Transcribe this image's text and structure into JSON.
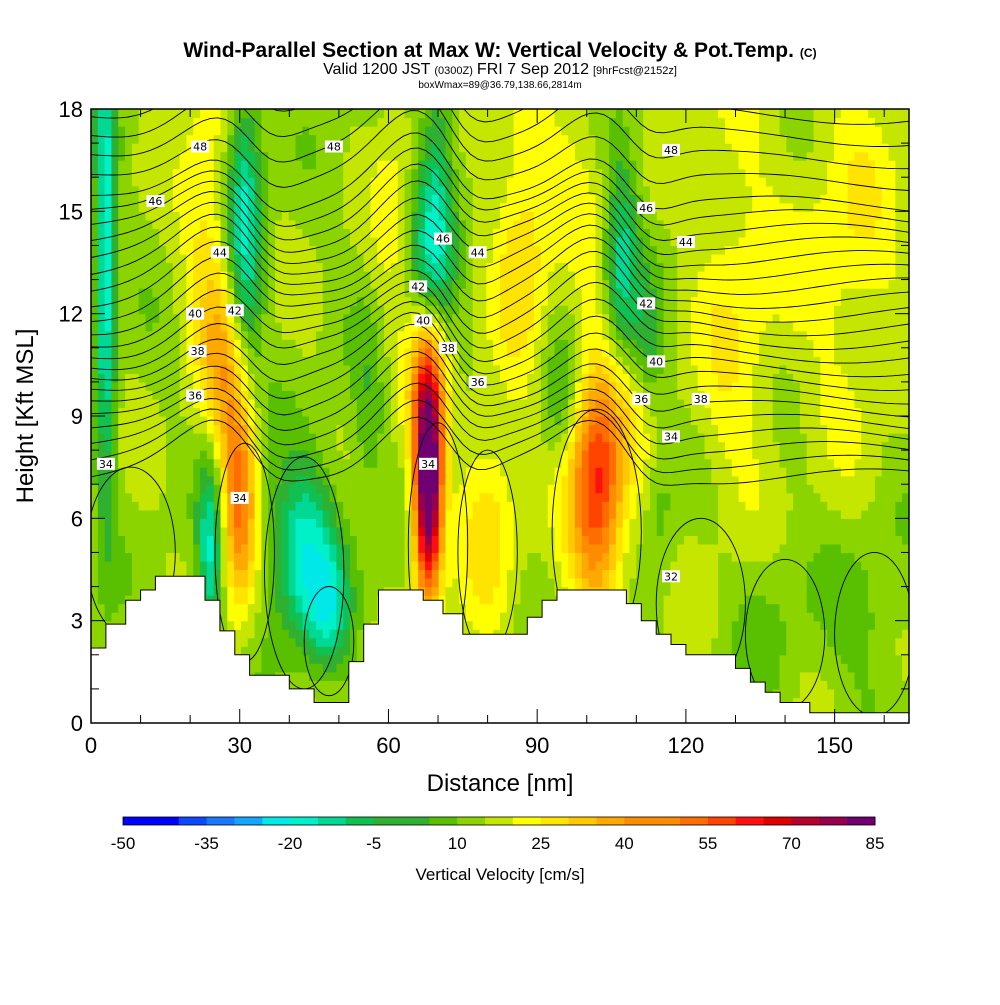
{
  "title": {
    "main": "Wind-Parallel Section at Max W: Vertical Velocity & Pot.Temp.",
    "copyright": "(C)",
    "valid_prefix": "Valid 1200 JST",
    "valid_zulu": "(0300Z)",
    "valid_date": "FRI 7 Sep 2012",
    "forecast": "[9hrFcst@2152z]",
    "boxmax": "boxWmax=89@36.79,138.66,2814m"
  },
  "chart_data": {
    "type": "heatmap",
    "xlabel": "Distance [nm]",
    "ylabel": "Height [Kft MSL]",
    "xlim": [
      0,
      165
    ],
    "ylim": [
      0,
      18
    ],
    "x_ticks": [
      "0",
      "30",
      "60",
      "90",
      "120",
      "150"
    ],
    "y_ticks": [
      "0",
      "3",
      "6",
      "9",
      "12",
      "15",
      "18"
    ],
    "colorbar": {
      "title": "Vertical Velocity [cm/s]",
      "min": -50,
      "max": 85,
      "step": 5,
      "tick_labels": [
        "-50",
        "-35",
        "-20",
        "-5",
        "10",
        "25",
        "40",
        "55",
        "70",
        "85"
      ]
    },
    "terrain": [
      [
        0,
        2.2
      ],
      [
        3,
        2.2
      ],
      [
        3,
        2.9
      ],
      [
        7,
        2.9
      ],
      [
        7,
        3.6
      ],
      [
        10,
        3.6
      ],
      [
        10,
        3.9
      ],
      [
        13,
        3.9
      ],
      [
        13,
        4.3
      ],
      [
        23,
        4.3
      ],
      [
        23,
        3.6
      ],
      [
        26,
        3.6
      ],
      [
        26,
        2.7
      ],
      [
        29,
        2.7
      ],
      [
        29,
        2.0
      ],
      [
        32,
        2.0
      ],
      [
        32,
        1.4
      ],
      [
        40,
        1.4
      ],
      [
        40,
        1.0
      ],
      [
        45,
        1.0
      ],
      [
        45,
        0.6
      ],
      [
        52,
        0.6
      ],
      [
        52,
        1.8
      ],
      [
        55,
        1.8
      ],
      [
        55,
        2.9
      ],
      [
        58,
        2.9
      ],
      [
        58,
        3.9
      ],
      [
        67,
        3.9
      ],
      [
        67,
        3.6
      ],
      [
        71,
        3.6
      ],
      [
        71,
        3.2
      ],
      [
        75,
        3.2
      ],
      [
        75,
        2.6
      ],
      [
        88,
        2.6
      ],
      [
        88,
        3.1
      ],
      [
        91,
        3.1
      ],
      [
        91,
        3.6
      ],
      [
        94,
        3.6
      ],
      [
        94,
        3.9
      ],
      [
        108,
        3.9
      ],
      [
        108,
        3.5
      ],
      [
        111,
        3.5
      ],
      [
        111,
        3.0
      ],
      [
        114,
        3.0
      ],
      [
        114,
        2.6
      ],
      [
        117,
        2.6
      ],
      [
        117,
        2.3
      ],
      [
        120,
        2.3
      ],
      [
        120,
        2.0
      ],
      [
        130,
        2.0
      ],
      [
        130,
        1.6
      ],
      [
        133,
        1.6
      ],
      [
        133,
        1.2
      ],
      [
        136,
        1.2
      ],
      [
        136,
        0.9
      ],
      [
        139,
        0.9
      ],
      [
        139,
        0.6
      ],
      [
        145,
        0.6
      ],
      [
        145,
        0.3
      ],
      [
        165,
        0.3
      ]
    ],
    "w_features": [
      {
        "x": 30,
        "y": 6.5,
        "sx": 2.5,
        "sy": 2.3,
        "amp": 32
      },
      {
        "x": 27,
        "y": 10.5,
        "sx": 3.0,
        "sy": 2.2,
        "amp": 18
      },
      {
        "x": 68,
        "y": 7.0,
        "sx": 2.0,
        "sy": 2.3,
        "amp": 78
      },
      {
        "x": 68,
        "y": 10.5,
        "sx": 3.0,
        "sy": 1.6,
        "amp": 20
      },
      {
        "x": 80,
        "y": 6.0,
        "sx": 4.0,
        "sy": 2.2,
        "amp": 14
      },
      {
        "x": 102,
        "y": 7.0,
        "sx": 4.0,
        "sy": 2.6,
        "amp": 42
      },
      {
        "x": 109,
        "y": 10.0,
        "sx": 4.0,
        "sy": 2.0,
        "amp": 12
      },
      {
        "x": 23,
        "y": 14.5,
        "sx": 3.5,
        "sy": 3.5,
        "amp": 12
      },
      {
        "x": 87,
        "y": 14.0,
        "sx": 4.0,
        "sy": 3.0,
        "amp": 15
      },
      {
        "x": 62,
        "y": 14.5,
        "sx": 3.5,
        "sy": 3.5,
        "amp": 8
      },
      {
        "x": 98,
        "y": 16.5,
        "sx": 5.0,
        "sy": 2.5,
        "amp": 6
      },
      {
        "x": 130,
        "y": 12.0,
        "sx": 6.0,
        "sy": 5.0,
        "amp": 10
      },
      {
        "x": 153,
        "y": 14.0,
        "sx": 8.0,
        "sy": 4.0,
        "amp": 10
      },
      {
        "x": 3,
        "y": 13.5,
        "sx": 1.5,
        "sy": 5.0,
        "amp": -28
      },
      {
        "x": 24,
        "y": 5.0,
        "sx": 1.8,
        "sy": 2.0,
        "amp": -25
      },
      {
        "x": 43,
        "y": 5.0,
        "sx": 5.0,
        "sy": 1.8,
        "amp": -28
      },
      {
        "x": 48,
        "y": 3.2,
        "sx": 3.0,
        "sy": 1.2,
        "amp": -16
      },
      {
        "x": 56,
        "y": 9.0,
        "sx": 2.5,
        "sy": 2.0,
        "amp": -8
      },
      {
        "x": 31,
        "y": 14.5,
        "sx": 2.5,
        "sy": 3.0,
        "amp": -26
      },
      {
        "x": 68,
        "y": 13.5,
        "sx": 3.5,
        "sy": 2.0,
        "amp": -20
      },
      {
        "x": 70,
        "y": 16.5,
        "sx": 2.5,
        "sy": 2.5,
        "amp": -14
      },
      {
        "x": 95,
        "y": 9.5,
        "sx": 3.0,
        "sy": 1.5,
        "amp": -10
      },
      {
        "x": 107,
        "y": 13.0,
        "sx": 2.5,
        "sy": 2.5,
        "amp": -24
      },
      {
        "x": 112,
        "y": 11.0,
        "sx": 2.5,
        "sy": 1.5,
        "amp": -16
      },
      {
        "x": 115,
        "y": 6.5,
        "sx": 2.0,
        "sy": 2.0,
        "amp": -6
      },
      {
        "x": 136,
        "y": 3.5,
        "sx": 6.0,
        "sy": 2.0,
        "amp": -6
      },
      {
        "x": 157,
        "y": 3.0,
        "sx": 6.0,
        "sy": 2.0,
        "amp": -6
      }
    ],
    "theta_contour_labels": [
      {
        "text": "48",
        "x": 22,
        "y": 16.9
      },
      {
        "text": "48",
        "x": 49,
        "y": 16.9
      },
      {
        "text": "48",
        "x": 117,
        "y": 16.8
      },
      {
        "text": "46",
        "x": 13,
        "y": 15.3
      },
      {
        "text": "46",
        "x": 71,
        "y": 14.2
      },
      {
        "text": "46",
        "x": 112,
        "y": 15.1
      },
      {
        "text": "44",
        "x": 26,
        "y": 13.8
      },
      {
        "text": "44",
        "x": 78,
        "y": 13.8
      },
      {
        "text": "44",
        "x": 120,
        "y": 14.1
      },
      {
        "text": "42",
        "x": 29,
        "y": 12.1
      },
      {
        "text": "42",
        "x": 66,
        "y": 12.8
      },
      {
        "text": "42",
        "x": 112,
        "y": 12.3
      },
      {
        "text": "40",
        "x": 21,
        "y": 12.0
      },
      {
        "text": "40",
        "x": 67,
        "y": 11.8
      },
      {
        "text": "40",
        "x": 114,
        "y": 10.6
      },
      {
        "text": "38",
        "x": 21.5,
        "y": 10.9
      },
      {
        "text": "38",
        "x": 72,
        "y": 11.0
      },
      {
        "text": "38",
        "x": 123,
        "y": 9.5
      },
      {
        "text": "36",
        "x": 21,
        "y": 9.6
      },
      {
        "text": "36",
        "x": 78,
        "y": 10.0
      },
      {
        "text": "36",
        "x": 111,
        "y": 9.5
      },
      {
        "text": "34",
        "x": 3,
        "y": 7.6
      },
      {
        "text": "34",
        "x": 30,
        "y": 6.6
      },
      {
        "text": "34",
        "x": 68,
        "y": 7.6
      },
      {
        "text": "34",
        "x": 117,
        "y": 8.4
      },
      {
        "text": "32",
        "x": 117,
        "y": 4.3
      }
    ]
  }
}
